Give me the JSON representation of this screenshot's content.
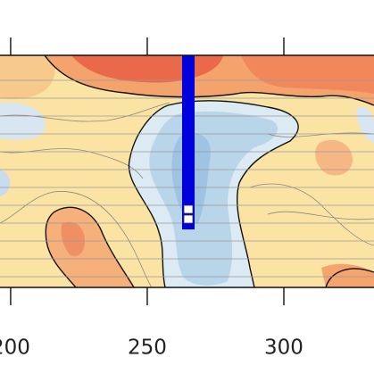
{
  "chart_data": {
    "type": "contour",
    "xlim": [
      196.1,
      333
    ],
    "xticks": [
      200,
      250,
      300
    ],
    "bar_color": "#0000dd"
  }
}
